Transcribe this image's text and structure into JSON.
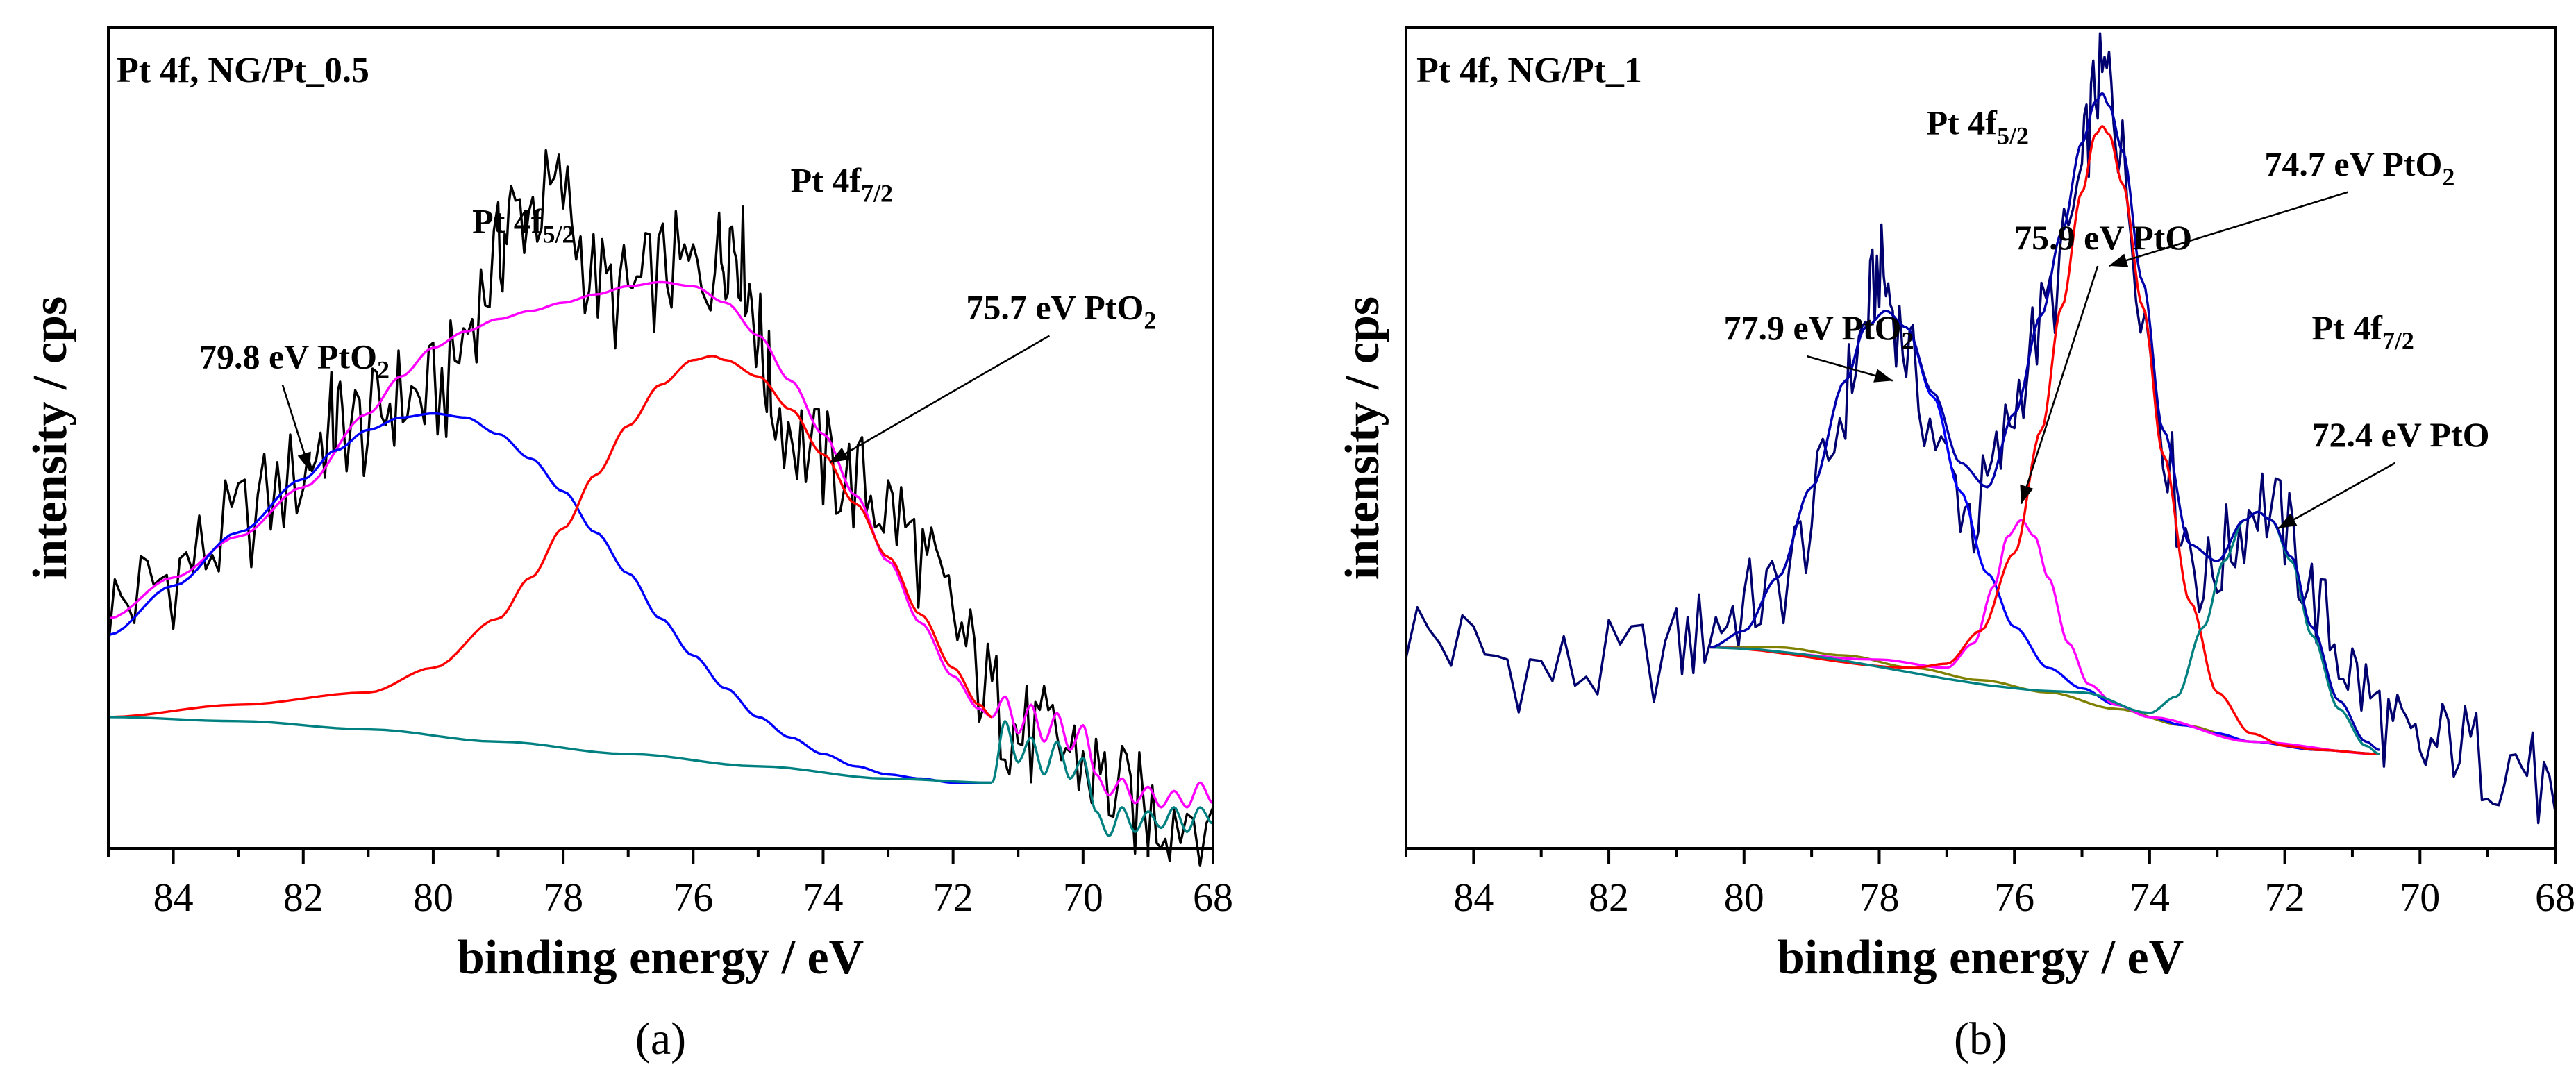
{
  "chart_data": [
    {
      "id": "a",
      "type": "line",
      "panel_label": "(a)",
      "title": "Pt 4f, NG/Pt_0.5",
      "xlabel": "binding energy / eV",
      "ylabel": "intensity / cps",
      "xlim": [
        85,
        68
      ],
      "x_reversed": true,
      "ylim": [
        0,
        100
      ],
      "xticks": [
        84,
        82,
        80,
        78,
        76,
        74,
        72,
        70,
        68
      ],
      "yticks_shown": false,
      "grid": false,
      "peak_labels": [
        {
          "text": "Pt 4f",
          "sub": "5/2",
          "x": 79.4,
          "y": 75
        },
        {
          "text": "Pt 4f",
          "sub": "7/2",
          "x": 74.5,
          "y": 80
        }
      ],
      "annotations": [
        {
          "text": "79.8 eV PtO",
          "sub": "2",
          "x": 83.6,
          "y": 58.5,
          "arrow_to": [
            81.9,
            46
          ]
        },
        {
          "text": "75.7 eV PtO",
          "sub": "2",
          "x": 71.8,
          "y": 64.5,
          "arrow_to": [
            73.9,
            47
          ]
        }
      ],
      "series": [
        {
          "name": "raw",
          "color": "#000000",
          "width": 3.4,
          "noise_amp": 7,
          "x": [
            85.0,
            84.4,
            83.8,
            83.2,
            82.6,
            82.0,
            81.6,
            81.4,
            81.0,
            80.6,
            80.2,
            79.8,
            79.4,
            79.0,
            78.8,
            78.4,
            78.0,
            77.6,
            77.2,
            76.8,
            76.4,
            76.0,
            75.6,
            75.4,
            75.2,
            75.0,
            74.8,
            74.4,
            74.0,
            73.6,
            73.2,
            72.8,
            72.4,
            72.0,
            71.6,
            71.2,
            71.0,
            70.6,
            70.2,
            69.8,
            69.4,
            69.0,
            68.6,
            68.0
          ],
          "y": [
            29.0,
            31.5,
            34.5,
            38.0,
            42.0,
            46.0,
            51.5,
            52.0,
            51.0,
            55.0,
            54.5,
            56.0,
            65.0,
            72.0,
            77.0,
            78.5,
            80.0,
            70.0,
            67.0,
            68.0,
            71.0,
            70.0,
            72.0,
            75.5,
            71.0,
            63.0,
            55.0,
            50.0,
            47.0,
            45.0,
            43.0,
            40.0,
            34.0,
            28.0,
            21.0,
            16.0,
            14.0,
            13.0,
            12.0,
            9.0,
            6.0,
            4.5,
            4.5,
            5.0
          ]
        },
        {
          "name": "envelope",
          "color": "#ff00ff",
          "width": 3.4,
          "noise_amp": 0,
          "x": [
            85.0,
            84.0,
            83.0,
            82.0,
            81.0,
            80.5,
            80.0,
            79.5,
            79.0,
            78.5,
            78.0,
            77.5,
            77.0,
            76.5,
            76.0,
            75.5,
            75.0,
            74.5,
            74.0,
            73.5,
            73.0,
            72.5,
            72.0,
            71.6,
            71.4
          ],
          "y": [
            28.0,
            33.0,
            38.0,
            44.0,
            53.0,
            57.5,
            61.0,
            63.0,
            64.5,
            65.5,
            66.5,
            67.5,
            68.5,
            69.0,
            68.5,
            66.5,
            62.5,
            57.0,
            50.5,
            43.0,
            35.0,
            27.5,
            21.0,
            17.0,
            16.0
          ]
        },
        {
          "name": "PtO2 79.8 eV",
          "color": "#0000ff",
          "width": 3.4,
          "noise_amp": 0,
          "x": [
            85.0,
            84.0,
            83.0,
            82.0,
            81.5,
            81.0,
            80.5,
            80.0,
            79.5,
            79.0,
            78.5,
            78.0,
            77.5,
            77.0,
            76.5,
            76.0,
            75.5,
            75.0,
            74.5,
            74.0,
            73.5,
            73.0,
            72.5,
            72.0,
            71.4
          ],
          "y": [
            26.0,
            32.0,
            38.5,
            45.0,
            48.5,
            51.0,
            52.5,
            53.0,
            52.5,
            50.5,
            47.5,
            43.5,
            38.5,
            33.5,
            28.0,
            23.5,
            19.5,
            16.0,
            13.5,
            11.5,
            10.0,
            9.0,
            8.5,
            8.0,
            8.0
          ]
        },
        {
          "name": "PtO2 75.7 eV",
          "color": "#ff0000",
          "width": 3.4,
          "noise_amp": 0,
          "x": [
            85.0,
            83.0,
            81.0,
            80.0,
            79.0,
            78.5,
            78.0,
            77.5,
            77.0,
            76.5,
            76.0,
            75.7,
            75.5,
            75.0,
            74.5,
            74.0,
            73.5,
            73.0,
            72.5,
            72.0,
            71.6,
            71.4
          ],
          "y": [
            16.0,
            17.5,
            19.0,
            22.0,
            28.0,
            33.0,
            39.0,
            45.5,
            51.5,
            56.5,
            59.5,
            60.0,
            59.5,
            57.5,
            53.5,
            48.0,
            42.0,
            35.5,
            28.5,
            22.0,
            17.5,
            16.0
          ]
        },
        {
          "name": "background",
          "color": "#008080",
          "width": 3.4,
          "noise_amp": 0,
          "x": [
            85.0,
            83.0,
            81.0,
            79.0,
            77.0,
            75.0,
            73.0,
            71.4
          ],
          "y": [
            16.0,
            15.5,
            14.5,
            13.0,
            11.5,
            10.0,
            8.5,
            8.0
          ]
        },
        {
          "name": "tail-magenta",
          "color": "#ff00ff",
          "width": 3.0,
          "noise_amp": 0,
          "x": [
            71.4,
            71.2,
            71.0,
            70.8,
            70.6,
            70.4,
            70.2,
            70.0,
            69.8,
            69.6,
            69.4,
            69.2,
            69.0,
            68.8,
            68.6,
            68.4,
            68.2,
            68.0
          ],
          "y": [
            16.0,
            18.5,
            14.0,
            17.5,
            13.0,
            16.5,
            12.0,
            15.0,
            9.0,
            6.5,
            8.5,
            5.5,
            7.5,
            5.0,
            7.0,
            5.0,
            8.0,
            5.5
          ]
        },
        {
          "name": "tail-teal",
          "color": "#008080",
          "width": 3.0,
          "noise_amp": 0,
          "x": [
            71.4,
            71.2,
            71.0,
            70.8,
            70.6,
            70.4,
            70.2,
            70.0,
            69.8,
            69.6,
            69.4,
            69.2,
            69.0,
            68.8,
            68.6,
            68.4,
            68.2,
            68.0
          ],
          "y": [
            8.0,
            15.5,
            10.5,
            13.5,
            9.0,
            13.0,
            8.5,
            11.0,
            4.5,
            1.5,
            5.0,
            2.0,
            4.5,
            2.5,
            5.0,
            2.0,
            5.0,
            3.0
          ]
        }
      ]
    },
    {
      "id": "b",
      "type": "line",
      "panel_label": "(b)",
      "title": "Pt 4f, NG/Pt_1",
      "xlabel": "binding energy / eV",
      "ylabel": "intensity / cps",
      "xlim": [
        85,
        68
      ],
      "x_reversed": true,
      "ylim": [
        0,
        100
      ],
      "xticks": [
        84,
        82,
        80,
        78,
        76,
        74,
        72,
        70,
        68
      ],
      "yticks_shown": false,
      "grid": false,
      "peak_labels": [
        {
          "text": "Pt 4f",
          "sub": "5/2",
          "x": 77.3,
          "y": 87
        },
        {
          "text": "Pt 4f",
          "sub": "7/2",
          "x": 71.6,
          "y": 62
        }
      ],
      "annotations": [
        {
          "text": "77.9 eV PtO",
          "sub": "2",
          "x": 80.3,
          "y": 62,
          "arrow_to": [
            77.8,
            57
          ]
        },
        {
          "text": "75.9 eV PtO",
          "sub": "",
          "x": 76.0,
          "y": 73,
          "arrow_to": [
            75.9,
            42
          ]
        },
        {
          "text": "74.7 eV PtO",
          "sub": "2",
          "x": 72.3,
          "y": 82,
          "arrow_to": [
            74.6,
            71
          ]
        },
        {
          "text": "72.4 eV PtO",
          "sub": "",
          "x": 71.6,
          "y": 49,
          "arrow_to": [
            72.1,
            39
          ]
        }
      ],
      "series": [
        {
          "name": "raw",
          "color": "#00006e",
          "width": 3.4,
          "noise_amp": 6,
          "x": [
            85.0,
            84.0,
            83.0,
            82.0,
            81.0,
            80.5,
            80.0,
            79.5,
            79.0,
            78.5,
            78.2,
            78.0,
            77.8,
            77.5,
            77.0,
            76.6,
            76.2,
            75.8,
            75.4,
            75.0,
            74.8,
            74.6,
            74.4,
            74.0,
            73.6,
            73.2,
            72.8,
            72.4,
            72.0,
            71.6,
            71.2,
            70.8,
            70.4,
            70.0,
            69.5,
            69.0,
            68.5,
            68.0
          ],
          "y": [
            27.0,
            24.0,
            21.5,
            22.0,
            24.0,
            27.0,
            29.5,
            31.0,
            40.0,
            55.0,
            64.0,
            71.0,
            66.0,
            58.0,
            46.0,
            40.0,
            48.0,
            60.0,
            68.0,
            82.0,
            93.0,
            94.0,
            84.0,
            61.0,
            42.0,
            32.0,
            37.0,
            43.0,
            39.0,
            31.0,
            24.0,
            19.0,
            14.0,
            11.0,
            13.5,
            10.5,
            11.0,
            4.5
          ]
        },
        {
          "name": "background",
          "color": "#808000",
          "width": 3.4,
          "noise_amp": 0,
          "x": [
            80.5,
            79.5,
            78.5,
            77.5,
            76.5,
            75.5,
            74.5,
            73.5,
            72.5,
            71.5,
            70.6
          ],
          "y": [
            24.5,
            24.5,
            23.5,
            22.0,
            20.5,
            19.0,
            17.0,
            15.0,
            13.0,
            12.0,
            11.5
          ]
        },
        {
          "name": "PtO2 77.9 eV",
          "color": "#0000ff",
          "width": 3.4,
          "noise_amp": 0,
          "x": [
            80.5,
            80.0,
            79.5,
            79.0,
            78.5,
            78.2,
            77.9,
            77.6,
            77.2,
            76.8,
            76.4,
            76.0,
            75.5,
            75.0,
            74.5,
            74.0,
            73.5,
            73.0,
            72.5,
            71.5,
            70.6
          ],
          "y": [
            24.5,
            26.5,
            33.0,
            44.0,
            57.0,
            63.5,
            65.5,
            63.5,
            55.0,
            43.5,
            33.5,
            27.0,
            22.0,
            19.5,
            17.5,
            16.0,
            15.0,
            14.0,
            13.0,
            12.0,
            11.5
          ]
        },
        {
          "name": "PtO 75.9 eV",
          "color": "#ff00ff",
          "width": 3.4,
          "noise_amp": 0,
          "x": [
            80.5,
            78.0,
            77.0,
            76.6,
            76.3,
            76.1,
            75.9,
            75.7,
            75.5,
            75.2,
            74.9,
            74.5,
            74.0,
            72.5,
            70.6
          ],
          "y": [
            24.5,
            23.0,
            22.0,
            25.0,
            32.0,
            38.0,
            40.0,
            38.0,
            33.0,
            25.0,
            20.0,
            17.5,
            16.0,
            13.0,
            11.5
          ]
        },
        {
          "name": "PtO2 74.7 eV",
          "color": "#ff0000",
          "width": 3.4,
          "noise_amp": 0,
          "x": [
            80.5,
            77.5,
            77.0,
            76.5,
            76.0,
            75.6,
            75.3,
            75.0,
            74.8,
            74.7,
            74.6,
            74.4,
            74.1,
            73.8,
            73.4,
            73.0,
            72.5,
            72.0,
            71.5,
            70.6
          ],
          "y": [
            24.5,
            22.0,
            22.5,
            26.5,
            36.0,
            51.0,
            66.0,
            80.0,
            87.0,
            88.0,
            87.0,
            81.0,
            66.0,
            48.0,
            30.0,
            19.0,
            14.0,
            12.5,
            12.0,
            11.5
          ]
        },
        {
          "name": "PtO 72.4 eV",
          "color": "#008080",
          "width": 3.4,
          "noise_amp": 0,
          "x": [
            80.5,
            75.0,
            74.0,
            73.6,
            73.2,
            72.9,
            72.6,
            72.4,
            72.2,
            71.9,
            71.6,
            71.2,
            70.8,
            70.6
          ],
          "y": [
            24.5,
            19.0,
            16.5,
            18.5,
            27.0,
            35.0,
            40.0,
            41.0,
            40.0,
            35.0,
            26.0,
            17.0,
            12.5,
            11.5
          ]
        },
        {
          "name": "envelope",
          "color": "#0000aa",
          "width": 3.4,
          "noise_amp": 0,
          "x": [
            80.5,
            80.0,
            79.5,
            79.0,
            78.5,
            78.2,
            77.9,
            77.6,
            77.2,
            76.8,
            76.4,
            76.0,
            75.6,
            75.3,
            75.0,
            74.8,
            74.7,
            74.6,
            74.4,
            74.1,
            73.8,
            73.4,
            73.0,
            72.6,
            72.4,
            72.2,
            71.9,
            71.6,
            71.2,
            70.8,
            70.6
          ],
          "y": [
            24.5,
            26.5,
            33.0,
            44.0,
            57.0,
            63.5,
            65.5,
            63.5,
            55.5,
            47.0,
            44.0,
            53.0,
            65.0,
            75.0,
            86.0,
            91.0,
            92.0,
            90.5,
            85.0,
            69.0,
            51.0,
            37.0,
            35.0,
            40.0,
            41.0,
            40.0,
            35.5,
            27.0,
            18.0,
            13.0,
            12.0
          ]
        }
      ]
    }
  ]
}
